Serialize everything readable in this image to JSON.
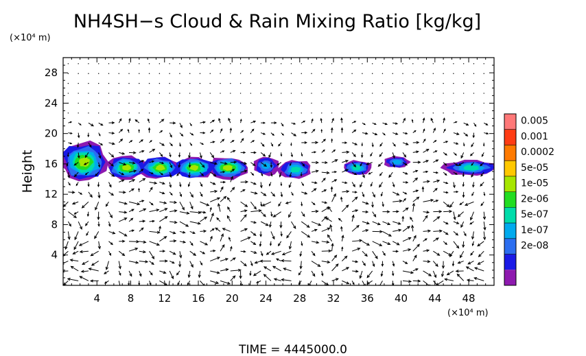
{
  "chart_data": {
    "type": "heatmap",
    "title": "NH4SH−s Cloud & Rain Mixing Ratio [kg/kg]",
    "ylabel": "Height",
    "x_unit": "(×10⁴ m)",
    "y_unit": "(×10⁴ m)",
    "xlim": [
      0,
      51
    ],
    "ylim": [
      0,
      30
    ],
    "x_ticks": [
      4,
      8,
      12,
      16,
      20,
      24,
      28,
      32,
      36,
      40,
      44,
      48
    ],
    "y_ticks": [
      4,
      8,
      12,
      16,
      20,
      24,
      28
    ],
    "colorbar": {
      "labels": [
        "0.005",
        "0.001",
        "0.0002",
        "5e-05",
        "1e-05",
        "2e-06",
        "5e-07",
        "1e-07",
        "2e-08"
      ],
      "colors": [
        "#ff7878",
        "#ff3c14",
        "#ff7a00",
        "#ffc800",
        "#a6e600",
        "#22dd22",
        "#00dcaa",
        "#00aaee",
        "#2c6ef0",
        "#1a1ae6",
        "#8e1aaf"
      ]
    },
    "cloud_regions": [
      {
        "x_range": [
          0,
          5
        ],
        "y_range": [
          13.5,
          19
        ],
        "max_level": "5e-05"
      },
      {
        "x_range": [
          5.5,
          21.5
        ],
        "y_range": [
          14,
          17
        ],
        "max_level": "5e-05"
      },
      {
        "x_range": [
          23,
          25
        ],
        "y_range": [
          14.5,
          17
        ],
        "max_level": "5e-07"
      },
      {
        "x_range": [
          26,
          29
        ],
        "y_range": [
          14,
          16.5
        ],
        "max_level": "2e-06"
      },
      {
        "x_range": [
          33.5,
          36
        ],
        "y_range": [
          14.5,
          16.5
        ],
        "max_level": "2e-06"
      },
      {
        "x_range": [
          38.5,
          40.5
        ],
        "y_range": [
          15.5,
          17
        ],
        "max_level": "5e-07"
      },
      {
        "x_range": [
          45.5,
          51
        ],
        "y_range": [
          14.5,
          16.5
        ],
        "max_level": "2e-06"
      }
    ],
    "vectors": "wind vector field"
  },
  "footer": {
    "time_label": "TIME = 4445000.0"
  }
}
